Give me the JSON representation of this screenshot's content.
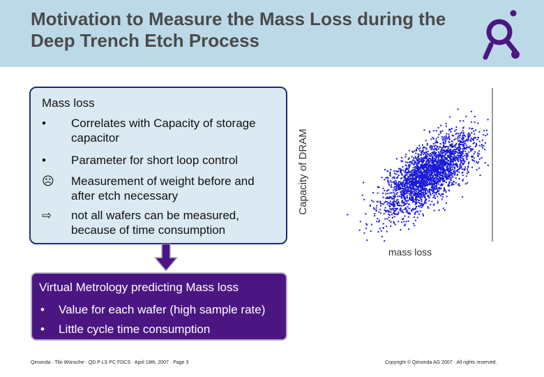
{
  "header": {
    "title": "Motivation to Measure the Mass Loss during the Deep Trench Etch Process",
    "logo_icon": "qimonda-q-logo-icon",
    "background_color": "#bcd9e7"
  },
  "mass_box": {
    "heading": "Mass loss",
    "items": [
      {
        "marker": "•",
        "icon": "bullet-icon",
        "text": "Correlates with Capacity of storage capacitor"
      },
      {
        "marker": "•",
        "icon": "bullet-icon",
        "text": "Parameter for short loop control"
      },
      {
        "marker": "☹",
        "icon": "frown-face-icon",
        "text": "Measurement of weight before and after etch necessary"
      },
      {
        "marker": "⇨",
        "icon": "arrow-right-icon",
        "text": "not all wafers can be measured, because of time consumption"
      }
    ]
  },
  "virtual_metrology": {
    "heading": "Virtual Metrology predicting Mass loss",
    "items": [
      {
        "marker": "•",
        "text": "Value for each wafer (high sample rate)"
      },
      {
        "marker": "•",
        "text": "Little cycle time consumption"
      }
    ],
    "background_color": "#4b1682"
  },
  "chart_data": {
    "type": "scatter",
    "xlabel": "mass loss",
    "ylabel": "Capacity of DRAM",
    "point_color": "#1a1ad6",
    "n_points": 2600,
    "x_center": 0.6,
    "y_center": 0.55,
    "correlation": "positive",
    "grid": false
  },
  "footer": {
    "left": "Qimonda · Tilo Wünsche · QD P LS PC FDCS · April 18th, 2007 · Page 3",
    "right": "Copyright © Qimonda AG 2007 · All rights reserved."
  }
}
